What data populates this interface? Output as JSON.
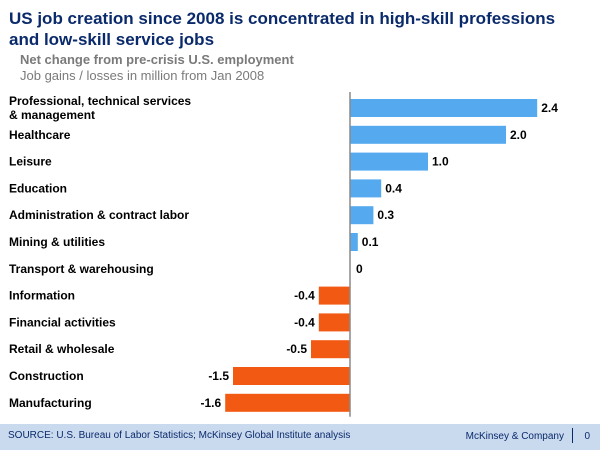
{
  "header": {
    "title": "US job creation since 2008 is concentrated in high-skill professions and low-skill service jobs",
    "subtitle": "Net change from pre-crisis U.S. employment",
    "unit": "Job gains / losses in million from Jan 2008"
  },
  "footer": {
    "source": "SOURCE: U.S. Bureau of Labor Statistics; McKinsey Global Institute analysis",
    "brand": "McKinsey & Company",
    "page": "0"
  },
  "colors": {
    "positive": "#55aaef",
    "negative": "#f25a14",
    "axis": "#8a8a8a"
  },
  "chart_data": {
    "type": "bar",
    "orientation": "horizontal",
    "title": "Net change from pre-crisis U.S. employment",
    "xlabel": "Job gains / losses in million from Jan 2008",
    "ylabel": "",
    "categories": [
      [
        "Professional, technical services",
        "& management"
      ],
      [
        "Healthcare"
      ],
      [
        "Leisure"
      ],
      [
        "Education"
      ],
      [
        "Administration & contract labor"
      ],
      [
        "Mining & utilities"
      ],
      [
        "Transport & warehousing"
      ],
      [
        "Information"
      ],
      [
        "Financial activities"
      ],
      [
        "Retail & wholesale"
      ],
      [
        "Construction"
      ],
      [
        "Manufacturing"
      ]
    ],
    "values": [
      2.4,
      2.0,
      1.0,
      0.4,
      0.3,
      0.1,
      0,
      -0.4,
      -0.4,
      -0.5,
      -1.5,
      -1.6
    ],
    "value_labels": [
      "2.4",
      "2.0",
      "1.0",
      "0.4",
      "0.3",
      "0.1",
      "0",
      "-0.4",
      "-0.4",
      "-0.5",
      "-1.5",
      "-1.6"
    ],
    "xlim": [
      -1.6,
      2.4
    ],
    "grid": false,
    "legend": "none"
  }
}
